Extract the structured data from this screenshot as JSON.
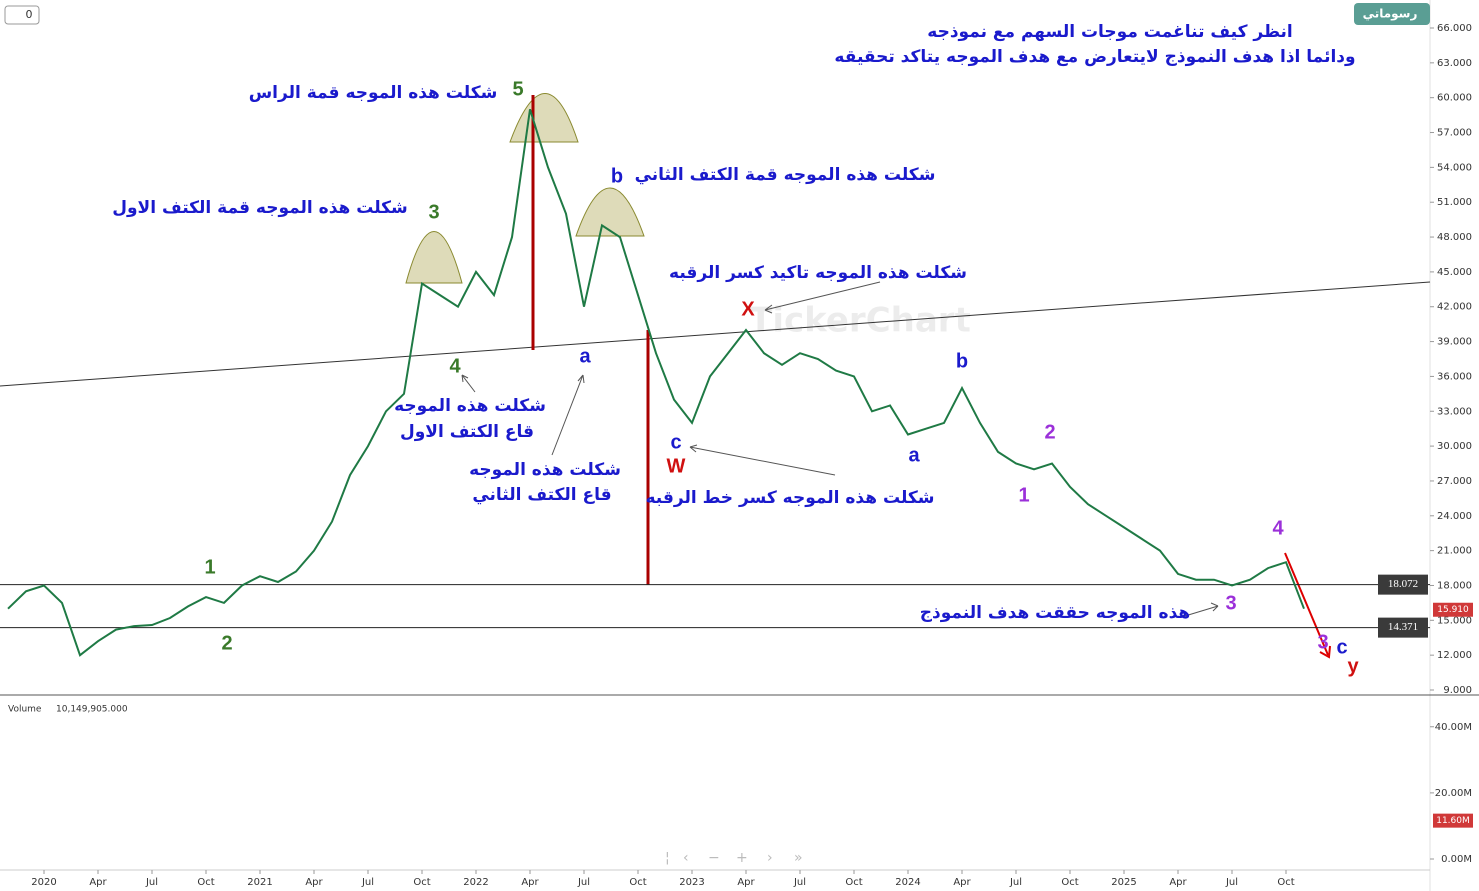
{
  "chart_data": {
    "type": "line",
    "color": "#1f7a45",
    "x": [
      "2019-11",
      "2019-12",
      "2020-01",
      "2020-02",
      "2020-03",
      "2020-04",
      "2020-05",
      "2020-06",
      "2020-07",
      "2020-08",
      "2020-09",
      "2020-10",
      "2020-11",
      "2020-12",
      "2021-01",
      "2021-02",
      "2021-03",
      "2021-04",
      "2021-05",
      "2021-06",
      "2021-07",
      "2021-08",
      "2021-09",
      "2021-10",
      "2021-11",
      "2021-12",
      "2022-01",
      "2022-02",
      "2022-03",
      "2022-04",
      "2022-05",
      "2022-06",
      "2022-07",
      "2022-08",
      "2022-09",
      "2022-10",
      "2022-11",
      "2022-12",
      "2023-01",
      "2023-02",
      "2023-03",
      "2023-04",
      "2023-05",
      "2023-06",
      "2023-07",
      "2023-08",
      "2023-09",
      "2023-10",
      "2023-11",
      "2023-12",
      "2024-01",
      "2024-02",
      "2024-03",
      "2024-04",
      "2024-05",
      "2024-06",
      "2024-07",
      "2024-08",
      "2024-09",
      "2024-10",
      "2024-11",
      "2024-12",
      "2025-01",
      "2025-02",
      "2025-03",
      "2025-04",
      "2025-05",
      "2025-06",
      "2025-07",
      "2025-08",
      "2025-09",
      "2025-10",
      "2025-11"
    ],
    "values": [
      16.0,
      17.5,
      18.0,
      16.5,
      12.0,
      13.2,
      14.2,
      14.5,
      14.6,
      15.2,
      16.2,
      17.0,
      16.5,
      18.0,
      18.8,
      18.3,
      19.2,
      21.0,
      23.5,
      27.5,
      30.0,
      33.0,
      34.5,
      44.0,
      43.0,
      42.0,
      45.0,
      43.0,
      48.0,
      59.0,
      54.0,
      50.0,
      42.0,
      49.0,
      48.0,
      43.0,
      38.0,
      34.0,
      32.0,
      36.0,
      38.0,
      40.0,
      38.0,
      37.0,
      38.0,
      37.5,
      36.5,
      36.0,
      33.0,
      33.5,
      31.0,
      31.5,
      32.0,
      35.0,
      32.0,
      29.5,
      28.5,
      28.0,
      28.5,
      26.5,
      25.0,
      24.0,
      23.0,
      22.0,
      21.0,
      19.0,
      18.5,
      18.5,
      18.0,
      18.5,
      19.5,
      20.0,
      16.0
    ],
    "ylim": [
      9,
      66
    ],
    "yticks": [
      {
        "value": 9,
        "label": "9.000"
      },
      {
        "value": 12,
        "label": "12.000"
      },
      {
        "value": 15,
        "label": "15.000"
      },
      {
        "value": 18,
        "label": "18.000"
      },
      {
        "value": 21,
        "label": "21.000"
      },
      {
        "value": 24,
        "label": "24.000"
      },
      {
        "value": 27,
        "label": "27.000"
      },
      {
        "value": 30,
        "label": "30.000"
      },
      {
        "value": 33,
        "label": "33.000"
      },
      {
        "value": 36,
        "label": "36.000"
      },
      {
        "value": 39,
        "label": "39.000"
      },
      {
        "value": 42,
        "label": "42.000"
      },
      {
        "value": 45,
        "label": "45.000"
      },
      {
        "value": 48,
        "label": "48.000"
      },
      {
        "value": 51,
        "label": "51.000"
      },
      {
        "value": 54,
        "label": "54.000"
      },
      {
        "value": 57,
        "label": "57.000"
      },
      {
        "value": 60,
        "label": "60.000"
      },
      {
        "value": 63,
        "label": "63.000"
      },
      {
        "value": 66,
        "label": "66.000"
      }
    ],
    "xticks": [
      {
        "value": "2020-01",
        "label": "2020"
      },
      {
        "value": "2020-04",
        "label": "Apr"
      },
      {
        "value": "2020-07",
        "label": "Jul"
      },
      {
        "value": "2020-10",
        "label": "Oct"
      },
      {
        "value": "2021-01",
        "label": "2021"
      },
      {
        "value": "2021-04",
        "label": "Apr"
      },
      {
        "value": "2021-07",
        "label": "Jul"
      },
      {
        "value": "2021-10",
        "label": "Oct"
      },
      {
        "value": "2022-01",
        "label": "2022"
      },
      {
        "value": "2022-04",
        "label": "Apr"
      },
      {
        "value": "2022-07",
        "label": "Jul"
      },
      {
        "value": "2022-10",
        "label": "Oct"
      },
      {
        "value": "2023-01",
        "label": "2023"
      },
      {
        "value": "2023-04",
        "label": "Apr"
      },
      {
        "value": "2023-07",
        "label": "Jul"
      },
      {
        "value": "2023-10",
        "label": "Oct"
      },
      {
        "value": "2024-01",
        "label": "2024"
      },
      {
        "value": "2024-04",
        "label": "Apr"
      },
      {
        "value": "2024-07",
        "label": "Jul"
      },
      {
        "value": "2024-10",
        "label": "Oct"
      },
      {
        "value": "2025-01",
        "label": "2025"
      },
      {
        "value": "2025-04",
        "label": "Apr"
      },
      {
        "value": "2025-07",
        "label": "Jul"
      },
      {
        "value": "2025-10",
        "label": "Oct"
      }
    ],
    "levels": [
      18.072,
      14.371
    ],
    "current_price": {
      "value": 15.91,
      "label": "15.910"
    },
    "annotations": [
      "انظر كيف تناغمت موجات السهم مع نموذجه",
      "ودائما اذا هدف النموذج لايتعارض مع هدف الموجه يتاكد تحقيقه",
      "شكلت هذه الموجه قمة الراس",
      "شكلت هذه الموجه قمة الكتف الثاني",
      "شكلت هذه الموجه قمة الكتف الاول",
      "شكلت هذه الموجه تاكيد كسر الرقبه",
      "شكلت هذه الموجه",
      "قاع الكتف الاول",
      "شكلت هذه الموجه",
      "قاع الكتف الثاني",
      "شكلت هذه الموجه كسر خط الرقبه",
      "هذه الموجه حققت هدف النموذج"
    ],
    "wave_labels": [
      "5",
      "3",
      "4",
      "1",
      "2",
      "b",
      "a",
      "X",
      "c",
      "W",
      "b",
      "a",
      "2",
      "1",
      "3",
      "4",
      "3",
      "c",
      "y"
    ],
    "volume": {
      "title": "Volume",
      "value": 10149905,
      "value_label": "10,149,905.000",
      "current": {
        "value": 11.6,
        "label": "11.60M"
      },
      "ylim": [
        0,
        49
      ],
      "yticks": [
        {
          "value": 0,
          "label": "0.00M"
        },
        {
          "value": 20,
          "label": "20.00M"
        },
        {
          "value": 40,
          "label": "40.00M"
        }
      ]
    },
    "counter": "0",
    "logo": "رسوماتي",
    "watermark": "TickerChart"
  }
}
